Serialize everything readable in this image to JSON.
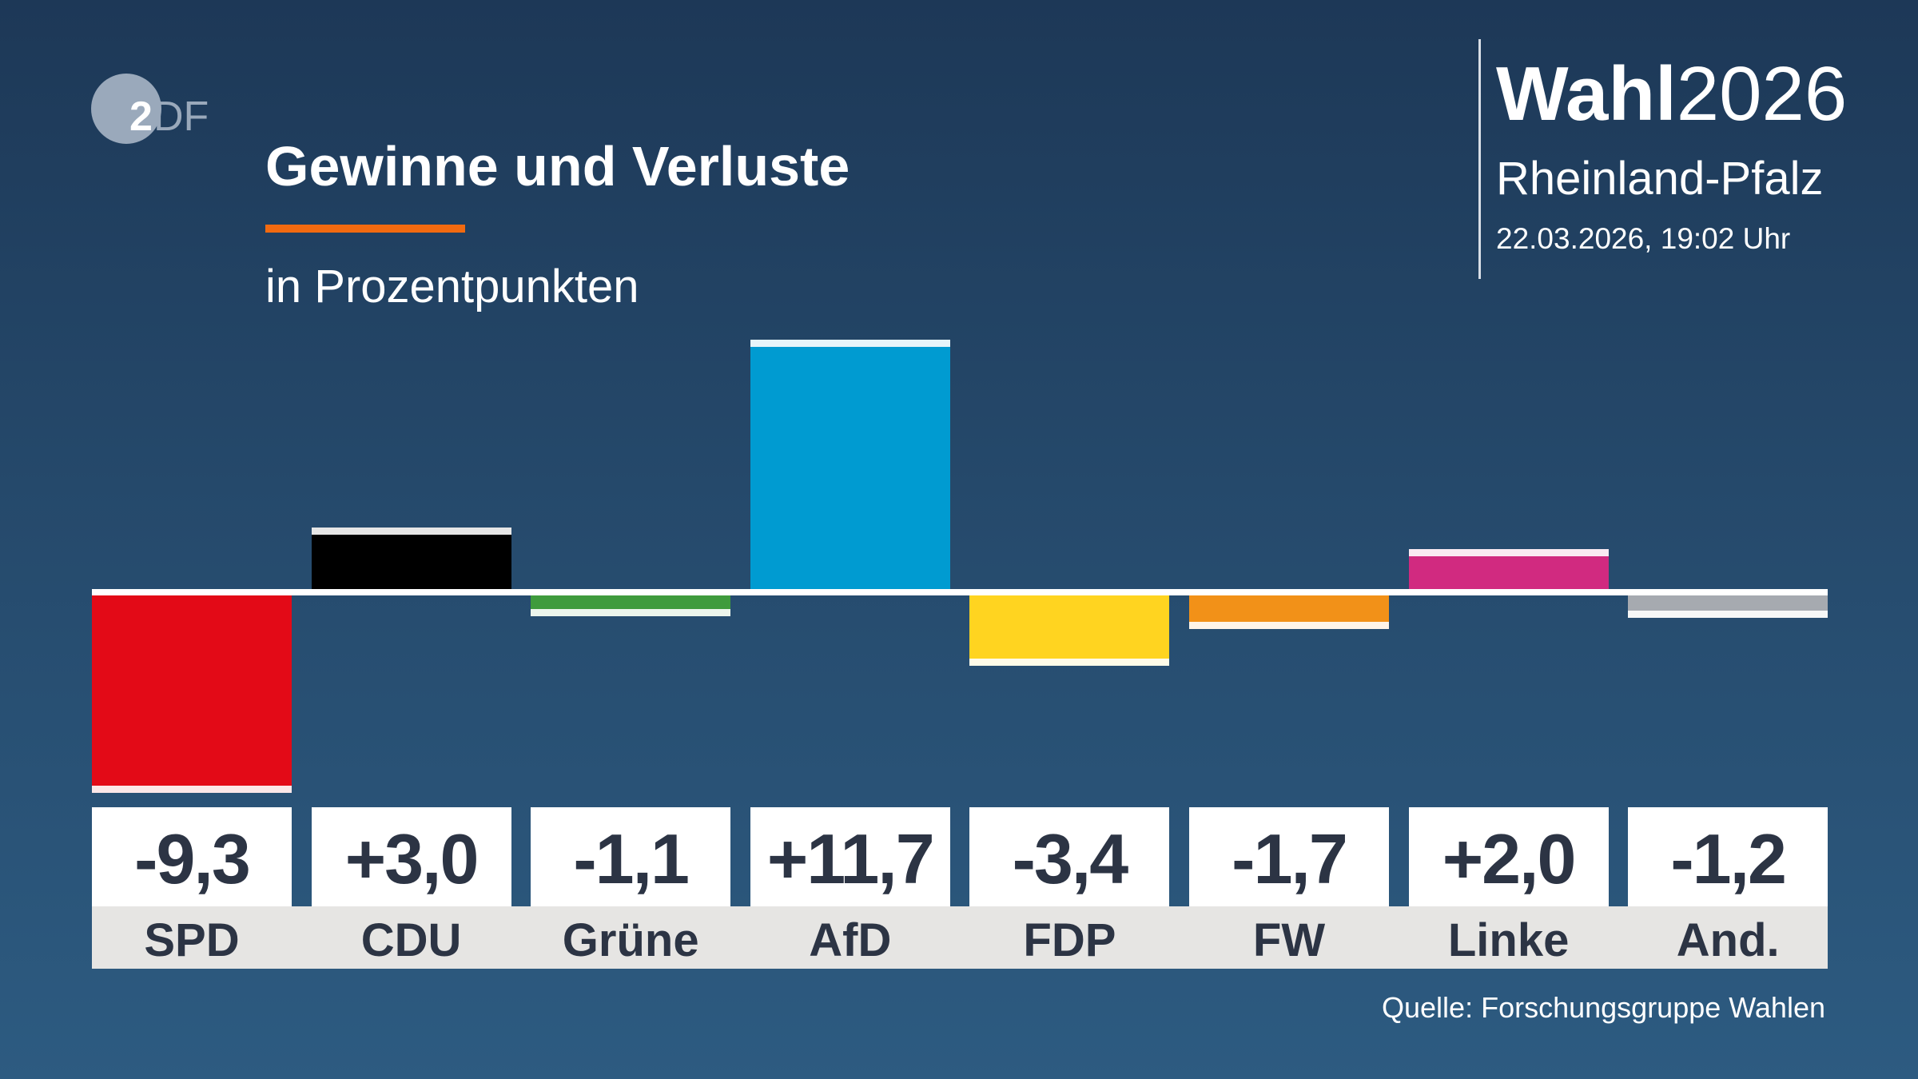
{
  "logo": {
    "text": "2DF",
    "circle_color": "#9aa9bb"
  },
  "header": {
    "title": "Gewinne und Verluste",
    "subtitle": "in Prozentpunkten",
    "accent_color": "#f26a10"
  },
  "brand": {
    "wahl": "Wahl",
    "year": "2026",
    "region": "Rheinland-Pfalz",
    "datetime": "22.03.2026, 19:02 Uhr"
  },
  "source": "Quelle: Forschungsgruppe Wahlen",
  "chart_data": {
    "type": "bar",
    "title": "Gewinne und Verluste",
    "subtitle": "in Prozentpunkten",
    "categories": [
      "SPD",
      "CDU",
      "Grüne",
      "AfD",
      "FDP",
      "FW",
      "Linke",
      "And."
    ],
    "values": [
      -9.3,
      3.0,
      -1.1,
      11.7,
      -3.4,
      -1.7,
      2.0,
      -1.2
    ],
    "labels": [
      "-9,3",
      "+3,0",
      "-1,1",
      "+11,7",
      "-3,4",
      "-1,7",
      "+2,0",
      "-1,2"
    ],
    "colors": [
      "#e30a17",
      "#000000",
      "#3f9b3d",
      "#009bd1",
      "#ffd420",
      "#f29118",
      "#d12a80",
      "#a6aab0"
    ],
    "grid": false
  }
}
